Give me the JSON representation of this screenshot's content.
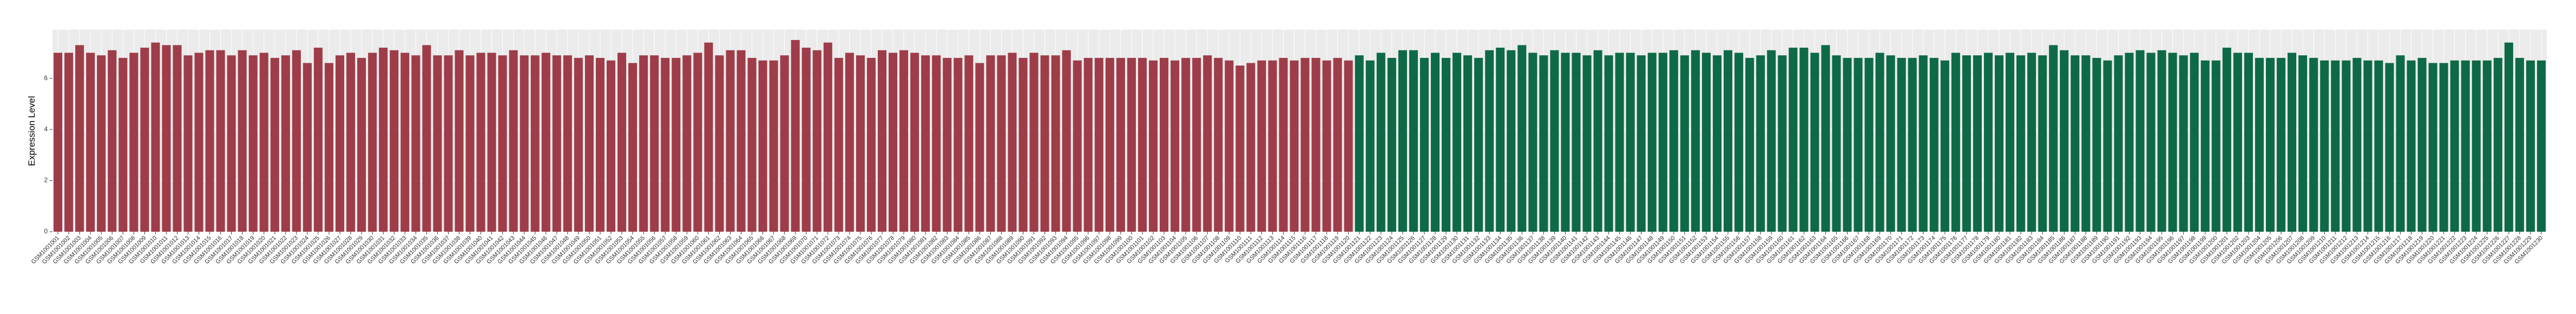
{
  "chart_data": {
    "type": "bar",
    "y_label": "Expression Level",
    "ylim": [
      0,
      7.9
    ],
    "yticks": [
      0,
      2,
      4,
      6
    ],
    "grid": true,
    "categories": [
      "GSM1001001",
      "GSM1001002",
      "GSM1001003",
      "GSM1001004",
      "GSM1001005",
      "GSM1001006",
      "GSM1001007",
      "GSM1001008",
      "GSM1001009",
      "GSM1001010",
      "GSM1001011",
      "GSM1001012",
      "GSM1001013",
      "GSM1001014",
      "GSM1001015",
      "GSM1001016",
      "GSM1001017",
      "GSM1001018",
      "GSM1001019",
      "GSM1001020",
      "GSM1001021",
      "GSM1001022",
      "GSM1001023",
      "GSM1001024",
      "GSM1001025",
      "GSM1001026",
      "GSM1001027",
      "GSM1001028",
      "GSM1001029",
      "GSM1001030",
      "GSM1001031",
      "GSM1001032",
      "GSM1001033",
      "GSM1001034",
      "GSM1001035",
      "GSM1001036",
      "GSM1001037",
      "GSM1001038",
      "GSM1001039",
      "GSM1001040",
      "GSM1001041",
      "GSM1001042",
      "GSM1001043",
      "GSM1001044",
      "GSM1001045",
      "GSM1001046",
      "GSM1001047",
      "GSM1001048",
      "GSM1001049",
      "GSM1001050",
      "GSM1001051",
      "GSM1001052",
      "GSM1001053",
      "GSM1001054",
      "GSM1001055",
      "GSM1001056",
      "GSM1001057",
      "GSM1001058",
      "GSM1001059",
      "GSM1001060",
      "GSM1001061",
      "GSM1001062",
      "GSM1001063",
      "GSM1001064",
      "GSM1001065",
      "GSM1001066",
      "GSM1001067",
      "GSM1001068",
      "GSM1001069",
      "GSM1001070",
      "GSM1001071",
      "GSM1001072",
      "GSM1001073",
      "GSM1001074",
      "GSM1001075",
      "GSM1001076",
      "GSM1001077",
      "GSM1001078",
      "GSM1001079",
      "GSM1001080",
      "GSM1001081",
      "GSM1001082",
      "GSM1001083",
      "GSM1001084",
      "GSM1001085",
      "GSM1001086",
      "GSM1001087",
      "GSM1001088",
      "GSM1001089",
      "GSM1001090",
      "GSM1001091",
      "GSM1001092",
      "GSM1001093",
      "GSM1001094",
      "GSM1001095",
      "GSM1001096",
      "GSM1001097",
      "GSM1001098",
      "GSM1001099",
      "GSM1001100",
      "GSM1001101",
      "GSM1001102",
      "GSM1001103",
      "GSM1001104",
      "GSM1001105",
      "GSM1001106",
      "GSM1001107",
      "GSM1001108",
      "GSM1001109",
      "GSM1001110",
      "GSM1001111",
      "GSM1001112",
      "GSM1001113",
      "GSM1001114",
      "GSM1001115",
      "GSM1001116",
      "GSM1001117",
      "GSM1001118",
      "GSM1001119",
      "GSM1001120",
      "GSM1001121",
      "GSM1001122",
      "GSM1001123",
      "GSM1001124",
      "GSM1001125",
      "GSM1001126",
      "GSM1001127",
      "GSM1001128",
      "GSM1001129",
      "GSM1001130",
      "GSM1001131",
      "GSM1001132",
      "GSM1001133",
      "GSM1001134",
      "GSM1001135",
      "GSM1001136",
      "GSM1001137",
      "GSM1001138",
      "GSM1001139",
      "GSM1001140",
      "GSM1001141",
      "GSM1001142",
      "GSM1001143",
      "GSM1001144",
      "GSM1001145",
      "GSM1001146",
      "GSM1001147",
      "GSM1001148",
      "GSM1001149",
      "GSM1001150",
      "GSM1001151",
      "GSM1001152",
      "GSM1001153",
      "GSM1001154",
      "GSM1001155",
      "GSM1001156",
      "GSM1001157",
      "GSM1001158",
      "GSM1001159",
      "GSM1001160",
      "GSM1001161",
      "GSM1001162",
      "GSM1001163",
      "GSM1001164",
      "GSM1001165",
      "GSM1001166",
      "GSM1001167",
      "GSM1001168",
      "GSM1001169",
      "GSM1001170",
      "GSM1001171",
      "GSM1001172",
      "GSM1001173",
      "GSM1001174",
      "GSM1001175",
      "GSM1001176",
      "GSM1001177",
      "GSM1001178",
      "GSM1001179",
      "GSM1001180",
      "GSM1001181",
      "GSM1001182",
      "GSM1001183",
      "GSM1001184",
      "GSM1001185",
      "GSM1001186",
      "GSM1001187",
      "GSM1001188",
      "GSM1001189",
      "GSM1001190",
      "GSM1001191",
      "GSM1001192",
      "GSM1001193",
      "GSM1001194",
      "GSM1001195",
      "GSM1001196",
      "GSM1001197",
      "GSM1001198",
      "GSM1001199",
      "GSM1001200",
      "GSM1001201",
      "GSM1001202",
      "GSM1001203",
      "GSM1001204",
      "GSM1001205",
      "GSM1001206",
      "GSM1001207",
      "GSM1001208",
      "GSM1001209",
      "GSM1001210",
      "GSM1001211",
      "GSM1001212",
      "GSM1001213",
      "GSM1001214",
      "GSM1001215",
      "GSM1001216",
      "GSM1001217",
      "GSM1001218",
      "GSM1001219",
      "GSM1001220",
      "GSM1001221",
      "GSM1001222",
      "GSM1001223",
      "GSM1001224",
      "GSM1001225",
      "GSM1001226",
      "GSM1001227",
      "GSM1001228",
      "GSM1001229",
      "GSM1001230"
    ],
    "series": [
      {
        "color": "#9e3d49",
        "values": [
          7.0,
          7.0,
          7.3,
          7.0,
          6.9,
          7.1,
          6.8,
          7.0,
          7.2,
          7.4,
          7.3,
          7.3,
          6.9,
          7.0,
          7.1,
          7.1,
          6.9,
          7.1,
          6.9,
          7.0,
          6.8,
          6.9,
          7.1,
          6.6,
          7.2,
          6.6,
          6.9,
          7.0,
          6.8,
          7.0,
          7.2,
          7.1,
          7.0,
          6.9,
          7.3,
          6.9,
          6.9,
          7.1,
          6.9,
          7.0,
          7.0,
          6.9,
          7.1,
          6.9,
          6.9,
          7.0,
          6.9,
          6.9,
          6.8,
          6.9,
          6.8,
          6.7,
          7.0,
          6.6,
          6.9,
          6.9,
          6.8,
          6.8,
          6.9,
          7.0,
          7.4,
          6.9,
          7.1,
          7.1,
          6.8,
          6.7,
          6.7,
          6.9,
          7.5,
          7.2,
          7.1,
          7.4,
          6.8,
          7.0,
          6.9,
          6.8,
          7.1,
          7.0,
          7.1,
          7.0,
          6.9,
          6.9,
          6.8,
          6.8,
          6.9,
          6.6,
          6.9,
          6.9,
          7.0,
          6.8,
          7.0,
          6.9,
          6.9,
          7.1,
          6.7,
          6.8,
          6.8,
          6.8,
          6.8,
          6.8,
          6.8,
          6.7,
          6.8,
          6.7,
          6.8,
          6.8,
          6.9,
          6.8,
          6.7,
          6.5,
          6.6,
          6.7,
          6.7,
          6.8,
          6.7,
          6.8,
          6.8,
          6.7,
          6.8,
          6.7,
          null,
          null,
          null,
          null,
          null,
          null,
          null,
          null,
          null,
          null,
          null,
          null,
          null,
          null,
          null,
          null,
          null,
          null,
          null,
          null,
          null,
          null,
          null,
          null,
          null,
          null,
          null,
          null,
          null,
          null,
          null,
          null,
          null,
          null,
          null,
          null,
          null,
          null,
          null,
          null,
          null,
          null,
          null,
          null,
          null,
          null,
          null,
          null,
          null,
          null,
          null,
          null,
          null,
          null,
          null,
          null,
          null,
          null,
          null,
          null,
          null,
          null,
          null,
          null,
          null,
          null,
          null,
          null,
          null,
          null,
          null,
          null,
          null,
          null,
          null,
          null,
          null,
          null,
          null,
          null,
          null,
          null,
          null,
          null,
          null,
          null,
          null,
          null,
          null,
          null,
          null,
          null,
          null,
          null,
          null,
          null,
          null,
          null,
          null,
          null,
          null,
          null,
          null,
          null,
          null,
          null,
          null,
          null,
          null,
          null
        ]
      },
      {
        "color": "#0e6a46",
        "values": [
          null,
          null,
          null,
          null,
          null,
          null,
          null,
          null,
          null,
          null,
          null,
          null,
          null,
          null,
          null,
          null,
          null,
          null,
          null,
          null,
          null,
          null,
          null,
          null,
          null,
          null,
          null,
          null,
          null,
          null,
          null,
          null,
          null,
          null,
          null,
          null,
          null,
          null,
          null,
          null,
          null,
          null,
          null,
          null,
          null,
          null,
          null,
          null,
          null,
          null,
          null,
          null,
          null,
          null,
          null,
          null,
          null,
          null,
          null,
          null,
          null,
          null,
          null,
          null,
          null,
          null,
          null,
          null,
          null,
          null,
          null,
          null,
          null,
          null,
          null,
          null,
          null,
          null,
          null,
          null,
          null,
          null,
          null,
          null,
          null,
          null,
          null,
          null,
          null,
          null,
          null,
          null,
          null,
          null,
          null,
          null,
          null,
          null,
          null,
          null,
          null,
          null,
          null,
          null,
          null,
          null,
          null,
          null,
          null,
          null,
          null,
          null,
          null,
          null,
          null,
          null,
          null,
          null,
          null,
          null,
          6.9,
          6.7,
          7.0,
          6.8,
          7.1,
          7.1,
          6.8,
          7.0,
          6.8,
          7.0,
          6.9,
          6.8,
          7.1,
          7.2,
          7.1,
          7.3,
          7.0,
          6.9,
          7.1,
          7.0,
          7.0,
          6.9,
          7.1,
          6.9,
          7.0,
          7.0,
          6.9,
          7.0,
          7.0,
          7.1,
          6.9,
          7.1,
          7.0,
          6.9,
          7.1,
          7.0,
          6.8,
          6.9,
          7.1,
          6.9,
          7.2,
          7.2,
          7.0,
          7.3,
          6.9,
          6.8,
          6.8,
          6.8,
          7.0,
          6.9,
          6.8,
          6.8,
          6.9,
          6.8,
          6.7,
          7.0,
          6.9,
          6.9,
          7.0,
          6.9,
          7.0,
          6.9,
          7.0,
          6.9,
          7.3,
          7.1,
          6.9,
          6.9,
          6.8,
          6.7,
          6.9,
          7.0,
          7.1,
          7.0,
          7.1,
          7.0,
          6.9,
          7.0,
          6.7,
          6.7,
          7.2,
          7.0,
          7.0,
          6.8,
          6.8,
          6.8,
          7.0,
          6.9,
          6.8,
          6.7,
          6.7,
          6.7,
          6.8,
          6.7,
          6.7,
          6.6,
          6.9,
          6.7,
          6.8,
          6.6,
          6.6,
          6.7,
          6.7,
          6.7,
          6.7,
          6.8,
          7.4,
          6.8,
          6.7,
          6.7
        ]
      }
    ]
  }
}
